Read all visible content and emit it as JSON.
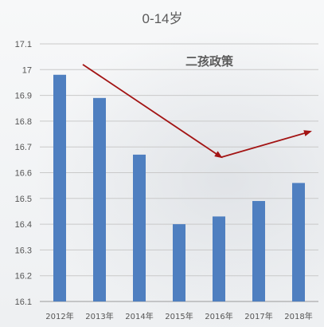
{
  "chart_data": {
    "type": "bar",
    "title": "0-14岁",
    "categories": [
      "2012年",
      "2013年",
      "2014年",
      "2015年",
      "2016年",
      "2017年",
      "2018年"
    ],
    "values": [
      16.98,
      16.89,
      16.67,
      16.4,
      16.43,
      16.49,
      16.56
    ],
    "ylim": [
      16.1,
      17.1
    ],
    "yticks": [
      "16.1",
      "16.2",
      "16.3",
      "16.4",
      "16.5",
      "16.6",
      "16.7",
      "16.8",
      "16.9",
      "17",
      "17.1"
    ],
    "grid": true,
    "bar_color": "#4f7fc0",
    "annotation": {
      "text": "二孩政策",
      "color": "#5b5b5b"
    },
    "trend_arrows": {
      "color": "#a31414",
      "points": [
        {
          "x": "2013年",
          "y": 17.02
        },
        {
          "x": "2016年",
          "y": 16.66
        },
        {
          "x": "2018年+",
          "y": 16.76
        }
      ]
    }
  }
}
